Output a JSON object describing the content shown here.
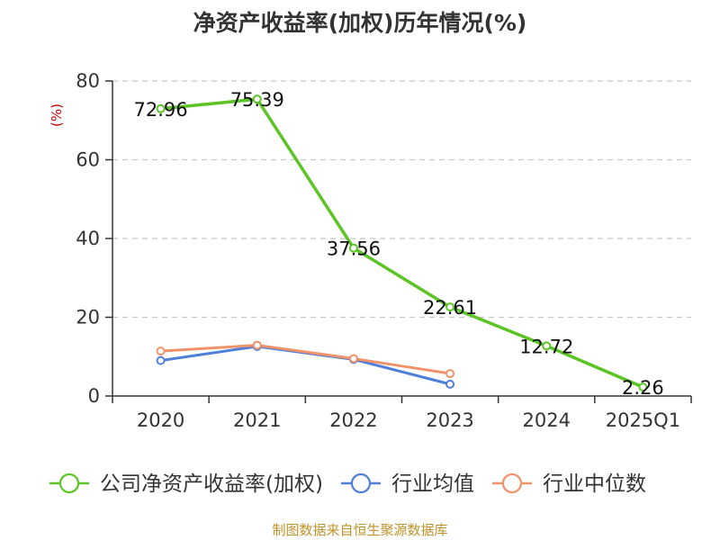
{
  "chart_data": {
    "type": "line",
    "title": "净资产收益率(加权)历年情况(%)",
    "ylabel": "(%)",
    "xlabel": "",
    "categories": [
      "2020",
      "2021",
      "2022",
      "2023",
      "2024",
      "2025Q1"
    ],
    "ylim": [
      0,
      80
    ],
    "yticks": [
      0,
      20,
      40,
      60,
      80
    ],
    "grid": true,
    "legend_position": "bottom",
    "series": [
      {
        "name": "公司净资产收益率(加权)",
        "color": "#5cc424",
        "values": [
          72.96,
          75.39,
          37.56,
          22.61,
          12.72,
          2.26
        ],
        "labels": [
          "72.96",
          "75.39",
          "37.56",
          "22.61",
          "12.72",
          "2.26"
        ]
      },
      {
        "name": "行业均值",
        "color": "#4f7fd8",
        "values": [
          9.0,
          12.6,
          9.3,
          3.0,
          null,
          null
        ]
      },
      {
        "name": "行业中位数",
        "color": "#f0926a",
        "values": [
          11.4,
          12.9,
          9.5,
          5.7,
          null,
          null
        ]
      }
    ]
  },
  "source": "制图数据来自恒生聚源数据库"
}
